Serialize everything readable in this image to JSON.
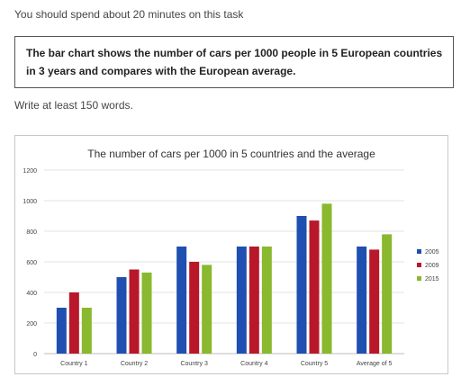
{
  "page": {
    "intro": "You should spend about 20 minutes on this task",
    "prompt": "The bar chart shows the number of cars per 1000 people in 5 European countries in 3 years and compares with the European average.",
    "word_instruction": "Write at least 150 words."
  },
  "chart_data": {
    "type": "bar",
    "title": "The number of cars per 1000 in 5 countries and the average",
    "xlabel": "",
    "ylabel": "",
    "categories": [
      "Country 1",
      "Country 2",
      "Country 3",
      "Country 4",
      "Country 5",
      "Average of 5"
    ],
    "series": [
      {
        "name": "2005",
        "color": "#1f4fb0",
        "values": [
          300,
          500,
          700,
          700,
          900,
          700
        ]
      },
      {
        "name": "2009",
        "color": "#b8182a",
        "values": [
          400,
          550,
          600,
          700,
          870,
          680
        ]
      },
      {
        "name": "2015",
        "color": "#8ab82e",
        "values": [
          300,
          530,
          580,
          700,
          980,
          780
        ]
      }
    ],
    "ylim": [
      0,
      1200
    ],
    "yticks": [
      "0",
      "200",
      "400",
      "600",
      "800",
      "1000",
      "1200"
    ],
    "grid": true,
    "legend_position": "right"
  }
}
